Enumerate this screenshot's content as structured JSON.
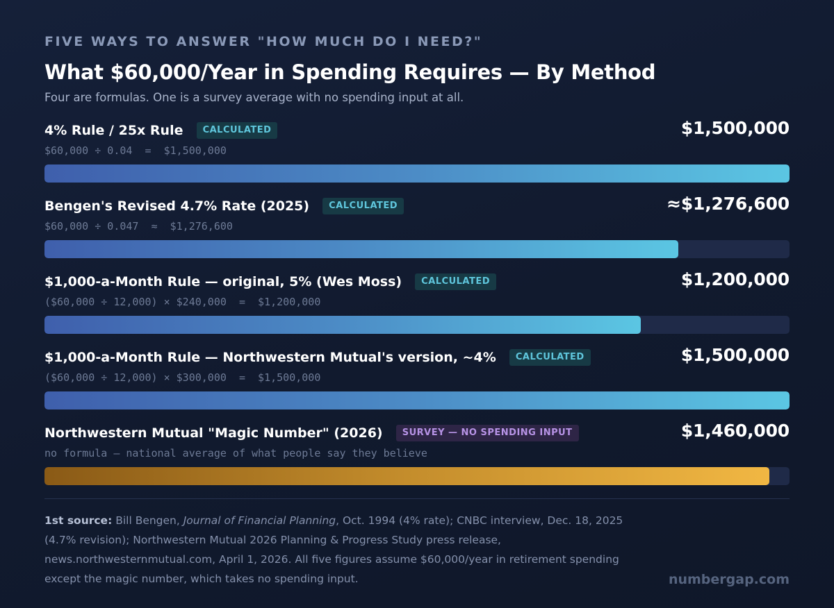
{
  "header": {
    "kicker": "FIVE WAYS TO ANSWER \"HOW MUCH DO I NEED?\"",
    "title": "What $60,000/Year in Spending Requires — By Method",
    "subtitle": "Four are formulas. One is a survey average with no spending input at all."
  },
  "chart_data": {
    "type": "bar",
    "orientation": "horizontal",
    "categories": [
      "4% Rule / 25x Rule",
      "Bengen's Revised 4.7% Rate (2025)",
      "$1,000-a-Month Rule — original, 5% (Wes Moss)",
      "$1,000-a-Month Rule — Northwestern Mutual's version, ~4%",
      "Northwestern Mutual \"Magic Number\" (2026)"
    ],
    "values": [
      1500000,
      1276600,
      1200000,
      1500000,
      1460000
    ],
    "xlim": [
      0,
      1500000
    ],
    "bars": [
      {
        "label": "4% Rule / 25x Rule",
        "badge": "CALCULATED",
        "badge_type": "calc",
        "value": 1500000,
        "value_label": "$1,500,000",
        "formula": "$60,000 ÷ 0.04  =  $1,500,000",
        "color": "blue"
      },
      {
        "label": "Bengen's Revised 4.7% Rate (2025)",
        "badge": "CALCULATED",
        "badge_type": "calc",
        "value": 1276600,
        "value_label": "≈$1,276,600",
        "formula": "$60,000 ÷ 0.047  ≈  $1,276,600",
        "color": "blue"
      },
      {
        "label": "$1,000-a-Month Rule — original, 5% (Wes Moss)",
        "badge": "CALCULATED",
        "badge_type": "calc",
        "value": 1200000,
        "value_label": "$1,200,000",
        "formula": "($60,000 ÷ 12,000) × $240,000  =  $1,200,000",
        "color": "blue"
      },
      {
        "label": "$1,000-a-Month Rule — Northwestern Mutual's version, ~4%",
        "badge": "CALCULATED",
        "badge_type": "calc",
        "value": 1500000,
        "value_label": "$1,500,000",
        "formula": "($60,000 ÷ 12,000) × $300,000  =  $1,500,000",
        "color": "blue"
      },
      {
        "label": "Northwestern Mutual \"Magic Number\" (2026)",
        "badge": "SURVEY — NO SPENDING INPUT",
        "badge_type": "survey",
        "value": 1460000,
        "value_label": "$1,460,000",
        "formula": "no formula — national average of what people say they believe",
        "color": "gold"
      }
    ]
  },
  "footer": {
    "source_lead": "1st source:",
    "source_author": " Bill Bengen, ",
    "source_journal": "Journal of Financial Planning",
    "source_rest": ", Oct. 1994 (4% rate); CNBC interview, Dec. 18, 2025 (4.7% revision); Northwestern Mutual 2026 Planning & Progress Study press release, news.northwesternmutual.com, April 1, 2026. All five figures assume $60,000/year in retirement spending except the magic number, which takes no spending input.",
    "brand": "numbergap.com"
  }
}
